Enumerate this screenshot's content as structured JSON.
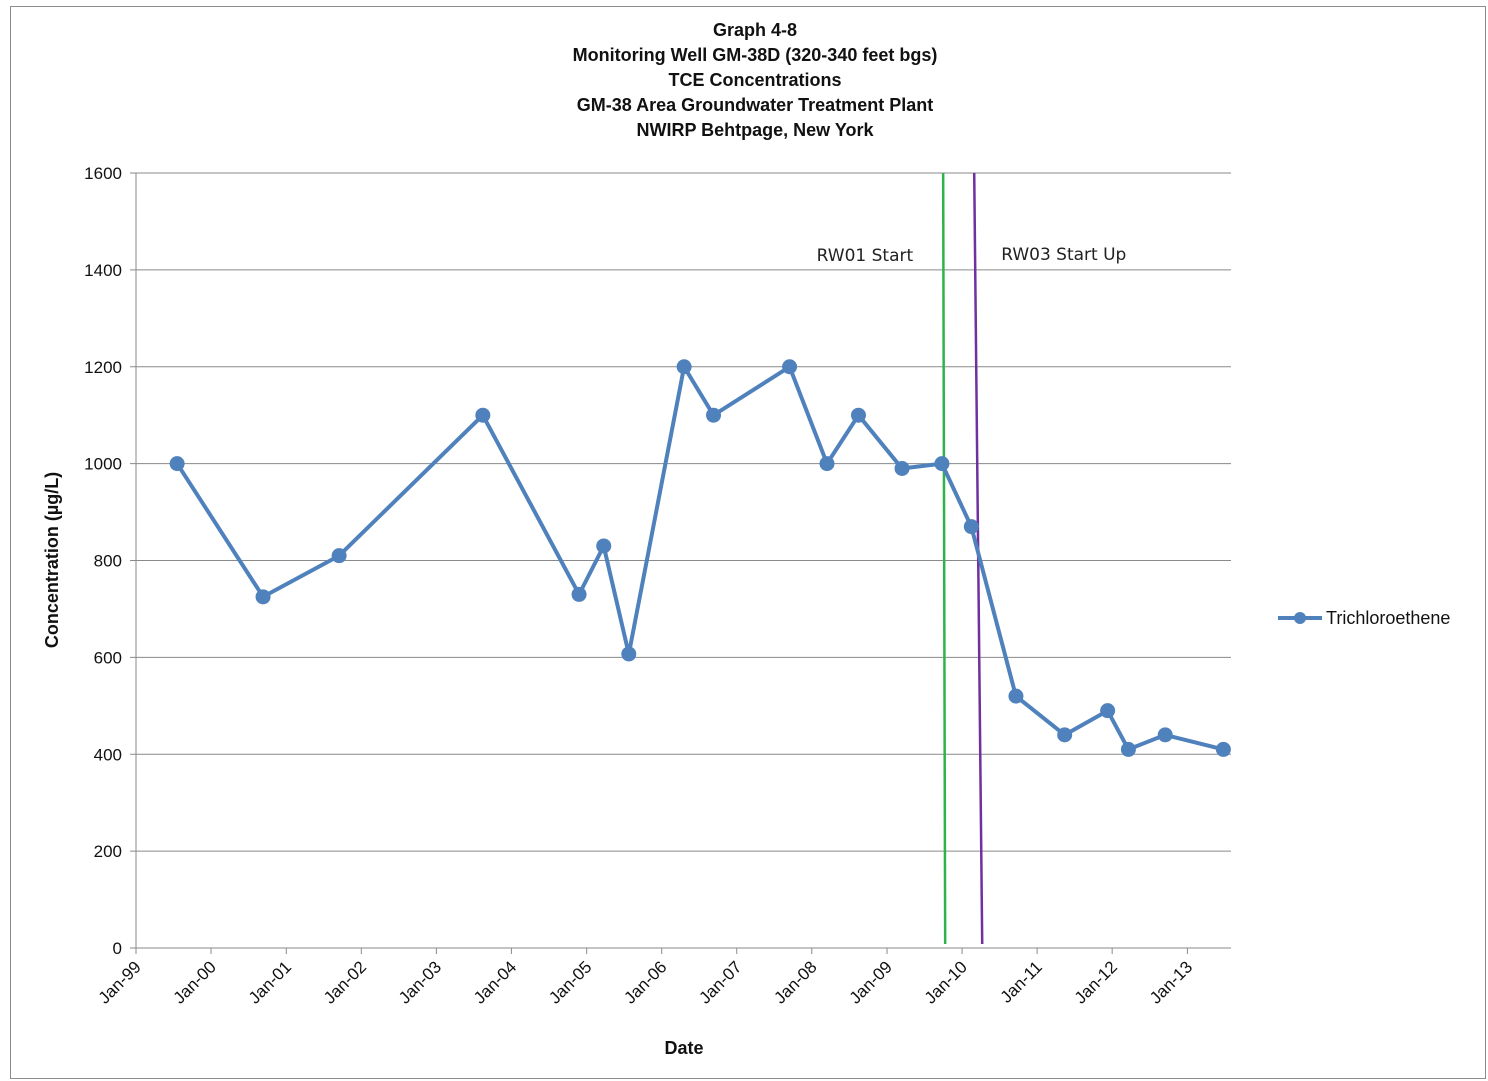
{
  "chart_data": {
    "type": "line",
    "title_lines": [
      "Graph 4-8",
      "Monitoring Well GM-38D (320-340 feet bgs)",
      "TCE Concentrations",
      "GM-38  Area Groundwater Treatment Plant",
      "NWIRP Behtpage, New York"
    ],
    "xlabel": "Date",
    "ylabel": "Concentration (µg/L)",
    "ylim": [
      0,
      1600
    ],
    "yticks": [
      0,
      200,
      400,
      600,
      800,
      1000,
      1200,
      1400,
      1600
    ],
    "xlim": [
      "1999-01-01",
      "2013-08-01"
    ],
    "xticks": [
      {
        "label": "Jan-99",
        "date": "1999-01-01"
      },
      {
        "label": "Jan-00",
        "date": "2000-01-01"
      },
      {
        "label": "Jan-01",
        "date": "2001-01-01"
      },
      {
        "label": "Jan-02",
        "date": "2002-01-01"
      },
      {
        "label": "Jan-03",
        "date": "2003-01-01"
      },
      {
        "label": "Jan-04",
        "date": "2004-01-01"
      },
      {
        "label": "Jan-05",
        "date": "2005-01-01"
      },
      {
        "label": "Jan-06",
        "date": "2006-01-01"
      },
      {
        "label": "Jan-07",
        "date": "2007-01-01"
      },
      {
        "label": "Jan-08",
        "date": "2008-01-01"
      },
      {
        "label": "Jan-09",
        "date": "2009-01-01"
      },
      {
        "label": "Jan-10",
        "date": "2010-01-01"
      },
      {
        "label": "Jan-11",
        "date": "2011-01-01"
      },
      {
        "label": "Jan-12",
        "date": "2012-01-01"
      },
      {
        "label": "Jan-13",
        "date": "2013-01-01"
      }
    ],
    "grid": "horizontal",
    "legend": "right",
    "series": [
      {
        "name": "Trichloroethene",
        "color": "#4f81bd",
        "points": [
          {
            "x": "1999-07-20",
            "y": 1000
          },
          {
            "x": "2000-09-10",
            "y": 725
          },
          {
            "x": "2001-09-15",
            "y": 810
          },
          {
            "x": "2003-08-15",
            "y": 1100
          },
          {
            "x": "2004-11-25",
            "y": 730
          },
          {
            "x": "2005-03-25",
            "y": 830
          },
          {
            "x": "2005-07-25",
            "y": 607
          },
          {
            "x": "2006-04-20",
            "y": 1200
          },
          {
            "x": "2006-09-10",
            "y": 1100
          },
          {
            "x": "2007-09-15",
            "y": 1200
          },
          {
            "x": "2008-03-15",
            "y": 1000
          },
          {
            "x": "2008-08-15",
            "y": 1100
          },
          {
            "x": "2009-03-15",
            "y": 990
          },
          {
            "x": "2009-09-25",
            "y": 1000
          },
          {
            "x": "2010-02-15",
            "y": 870
          },
          {
            "x": "2010-09-20",
            "y": 520
          },
          {
            "x": "2011-05-15",
            "y": 440
          },
          {
            "x": "2011-12-10",
            "y": 490
          },
          {
            "x": "2012-03-20",
            "y": 410
          },
          {
            "x": "2012-09-15",
            "y": 440
          },
          {
            "x": "2013-06-25",
            "y": 410
          }
        ]
      }
    ],
    "annotations": [
      {
        "label": "RW01 Start",
        "date": "2009-10-01",
        "color": "#2db34a"
      },
      {
        "label": "RW03 Start Up",
        "date": "2010-03-01",
        "color": "#7030a0"
      }
    ]
  }
}
